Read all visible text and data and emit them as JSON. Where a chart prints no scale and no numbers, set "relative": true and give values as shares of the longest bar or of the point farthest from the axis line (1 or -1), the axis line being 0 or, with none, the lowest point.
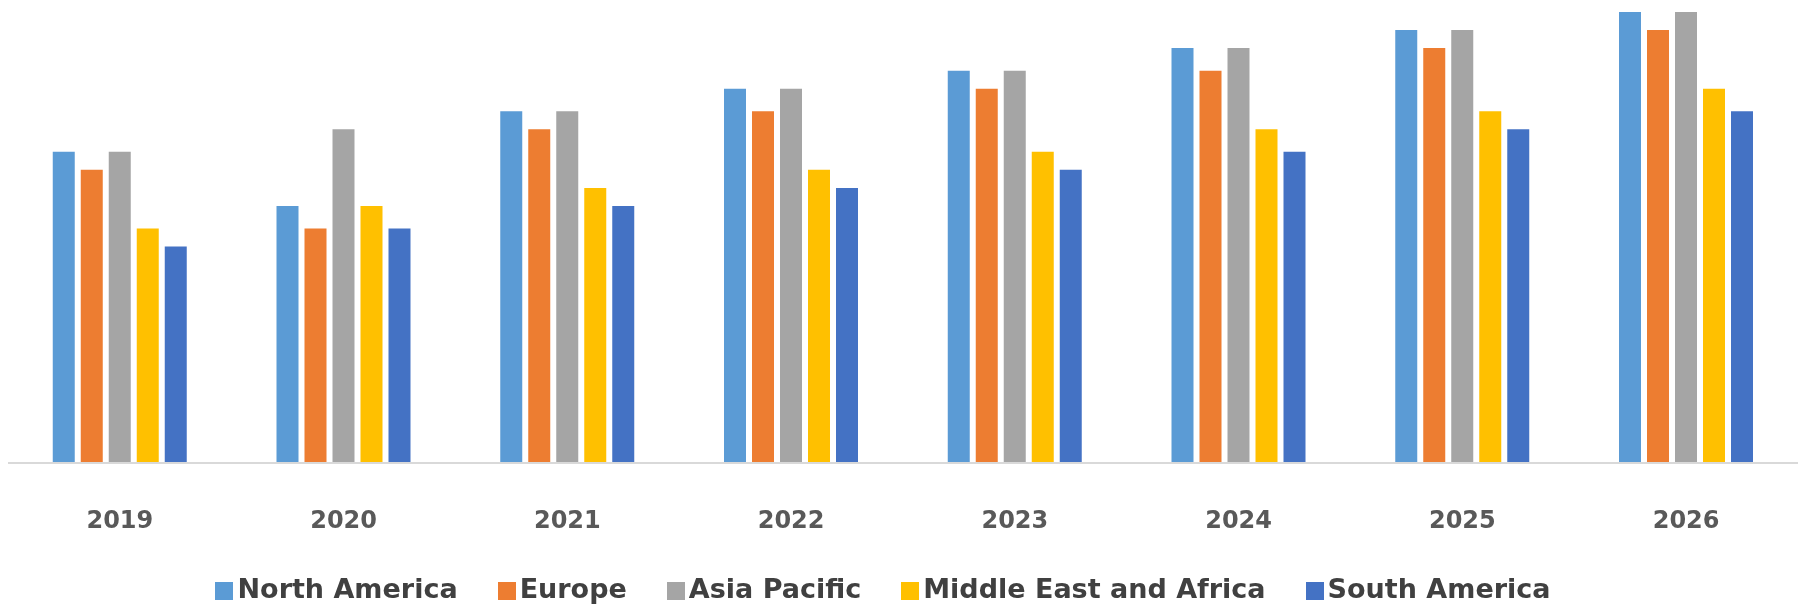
{
  "chart_data": {
    "type": "bar",
    "relative": true,
    "legend": "bottom",
    "categories": [
      "2019",
      "2020",
      "2021",
      "2022",
      "2023",
      "2024",
      "2025",
      "2026"
    ],
    "series": [
      {
        "name": "North America",
        "color": "#5b9bd5",
        "values": [
          0.69,
          0.57,
          0.78,
          0.83,
          0.87,
          0.92,
          0.96,
          1
        ]
      },
      {
        "name": "Europe",
        "color": "#ed7d31",
        "values": [
          0.65,
          0.52,
          0.74,
          0.78,
          0.83,
          0.87,
          0.92,
          0.96
        ]
      },
      {
        "name": "Asia Pacific",
        "color": "#a5a5a5",
        "values": [
          0.69,
          0.74,
          0.78,
          0.83,
          0.87,
          0.92,
          0.96,
          1
        ]
      },
      {
        "name": "Middle East and Africa",
        "color": "#ffc000",
        "values": [
          0.52,
          0.57,
          0.61,
          0.65,
          0.69,
          0.74,
          0.78,
          0.83
        ]
      },
      {
        "name": "South America",
        "color": "#4472c4",
        "values": [
          0.48,
          0.52,
          0.57,
          0.61,
          0.65,
          0.69,
          0.74,
          0.78
        ]
      }
    ]
  }
}
